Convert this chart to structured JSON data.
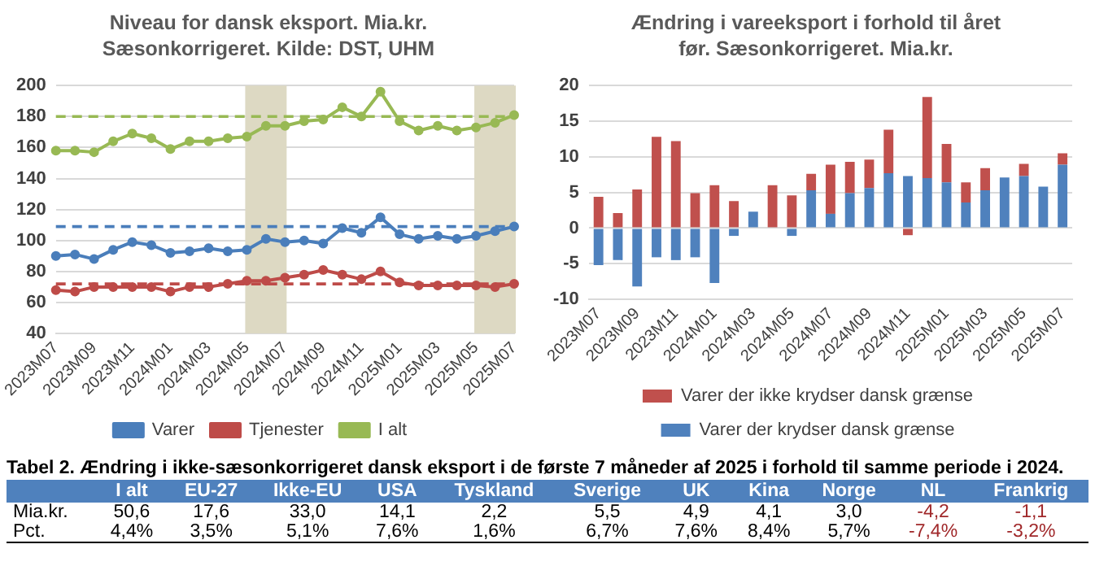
{
  "chart_data": [
    {
      "type": "line",
      "title": "Niveau for dansk eksport. Mia.kr. Sæsonkorrigeret. Kilde: DST, UHM",
      "categories": [
        "2023M07",
        null,
        "2023M09",
        null,
        "2023M11",
        null,
        "2024M01",
        null,
        "2024M03",
        null,
        "2024M05",
        null,
        "2024M07",
        null,
        "2024M09",
        null,
        "2024M11",
        null,
        "2025M01",
        null,
        "2025M03",
        null,
        "2025M05",
        null,
        "2025M07"
      ],
      "series": [
        {
          "name": "Varer",
          "color": "#4a7ebb",
          "values": [
            90,
            91,
            88,
            94,
            99,
            97,
            92,
            93,
            95,
            93,
            94,
            101,
            99,
            100,
            98,
            108,
            105,
            115,
            104,
            101,
            103,
            101,
            103,
            106,
            109
          ]
        },
        {
          "name": "Tjenester",
          "color": "#be4b48",
          "values": [
            68,
            67,
            70,
            70,
            70,
            70,
            67,
            70,
            70,
            72,
            74,
            74,
            76,
            78,
            81,
            78,
            75,
            80,
            73,
            71,
            71,
            71,
            71,
            70,
            72
          ]
        },
        {
          "name": "I alt",
          "color": "#98b954",
          "values": [
            158,
            158,
            157,
            164,
            169,
            166,
            159,
            164,
            164,
            166,
            167,
            174,
            174,
            177,
            178,
            186,
            180,
            196,
            177,
            171,
            174,
            171,
            173,
            176,
            181
          ]
        }
      ],
      "ylim": [
        40,
        200
      ],
      "yticks": [
        40,
        60,
        80,
        100,
        120,
        140,
        160,
        180,
        200
      ],
      "grid": "y",
      "legend": "bottom",
      "marker": "circle",
      "ref_lines": [
        {
          "axis": "y",
          "value": 180,
          "color": "#98b954",
          "line_style": "dashed"
        },
        {
          "axis": "y",
          "value": 109,
          "color": "#4a7ebb",
          "line_style": "dashed"
        },
        {
          "axis": "y",
          "value": 72,
          "color": "#be4b48",
          "line_style": "dashed"
        }
      ],
      "bands": [
        {
          "axis": "x",
          "from": "2024M05",
          "to": "2024M07",
          "color": "#ddd9c3"
        },
        {
          "axis": "x",
          "from": "2025M05",
          "to": "2025M07",
          "color": "#ddd9c3"
        }
      ]
    },
    {
      "type": "bar",
      "title": "Ændring i vareeksport i forhold til året før. Sæsonkorrigeret. Mia.kr.",
      "categories": [
        "2023M07",
        null,
        "2023M09",
        null,
        "2023M11",
        null,
        "2024M01",
        null,
        "2024M03",
        null,
        "2024M05",
        null,
        "2024M07",
        null,
        "2024M09",
        null,
        "2024M11",
        null,
        "2025M01",
        null,
        "2025M03",
        null,
        "2025M05",
        null,
        "2025M07"
      ],
      "stacked": true,
      "series": [
        {
          "name": "Varer der krydser dansk grænse",
          "color": "#4f81bd",
          "values": [
            -5.2,
            -4.5,
            -8.2,
            -4.1,
            -4.5,
            -4.1,
            -7.7,
            -1.1,
            2.3,
            null,
            -1.1,
            5.3,
            2.0,
            4.9,
            5.6,
            7.7,
            7.3,
            7.0,
            6.4,
            3.6,
            5.3,
            7.1,
            7.3,
            5.8,
            8.9
          ]
        },
        {
          "name": "Varer der ikke krydser dansk grænse",
          "color": "#c0504d",
          "values": [
            4.4,
            2.1,
            5.4,
            12.8,
            12.2,
            4.9,
            6.0,
            3.8,
            null,
            6.0,
            4.6,
            2.3,
            6.9,
            4.4,
            4.0,
            6.1,
            -1.0,
            11.4,
            5.4,
            2.8,
            3.1,
            null,
            1.7,
            null,
            1.6
          ]
        }
      ],
      "ylim": [
        -10,
        20
      ],
      "yticks": [
        -10,
        -5,
        0,
        5,
        10,
        15,
        20
      ],
      "grid": "y",
      "legend": "bottom"
    },
    {
      "type": "other",
      "title": "Tabel 2. Ændring i ikke-sæsonkorrigeret dansk eksport i de første 7 måneder af 2025 i forhold til samme periode i 2024.",
      "categories": [
        "I alt",
        "EU-27",
        "Ikke-EU",
        "USA",
        "Tyskland",
        "Sverige",
        "UK",
        "Kina",
        "Norge",
        "NL",
        "Frankrig"
      ],
      "series": [
        {
          "name": "Mia.kr.",
          "values": [
            50.6,
            17.6,
            33.0,
            14.1,
            2.2,
            5.5,
            4.9,
            4.1,
            3.0,
            -4.2,
            -1.1
          ],
          "value_labels": [
            "50,6",
            "17,6",
            "33,0",
            "14,1",
            "2,2",
            "5,5",
            "4,9",
            "4,1",
            "3,0",
            "-4,2",
            "-1,1"
          ],
          "colors": [
            "#000000",
            "#000000",
            "#000000",
            "#000000",
            "#000000",
            "#000000",
            "#000000",
            "#000000",
            "#000000",
            "#a0282a",
            "#a0282a"
          ]
        },
        {
          "name": "Pct.",
          "values": [
            4.4,
            3.5,
            5.1,
            7.6,
            1.6,
            6.7,
            7.6,
            8.4,
            5.7,
            -7.4,
            -3.2
          ],
          "value_labels": [
            "4,4%",
            "3,5%",
            "5,1%",
            "7,6%",
            "1,6%",
            "6,7%",
            "7,6%",
            "8,4%",
            "5,7%",
            "-7,4%",
            "-3,2%"
          ],
          "colors": [
            "#000000",
            "#000000",
            "#000000",
            "#000000",
            "#000000",
            "#000000",
            "#000000",
            "#000000",
            "#000000",
            "#a0282a",
            "#a0282a"
          ]
        }
      ]
    }
  ]
}
